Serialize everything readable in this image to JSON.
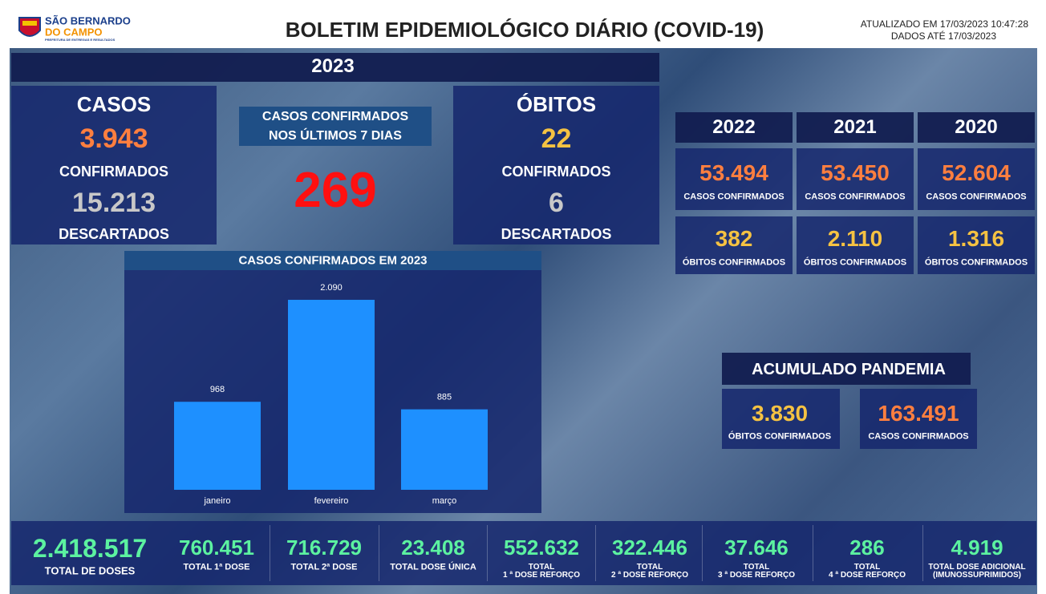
{
  "header": {
    "logo_name_1": "SÃO BERNARDO",
    "logo_name_2": "DO CAMPO",
    "logo_tagline": "PREFEITURA DE ENTREGAS E RESULTADOS",
    "title": "BOLETIM EPIDEMIOLÓGICO DIÁRIO (COVID-19)",
    "updated": "ATUALIZADO EM 17/03/2023 10:47:28",
    "data_until": "DADOS ATÉ 17/03/2023"
  },
  "year_banner": "2023",
  "cases": {
    "title": "CASOS",
    "confirmed": "3.943",
    "confirmed_label": "CONFIRMADOS",
    "discarded": "15.213",
    "discarded_label": "DESCARTADOS"
  },
  "last7": {
    "title_lines": [
      "CASOS CONFIRMADOS",
      "NOS ÚLTIMOS 7 DIAS"
    ],
    "value": "269"
  },
  "deaths": {
    "title": "ÓBITOS",
    "confirmed": "22",
    "confirmed_label": "CONFIRMADOS",
    "discarded": "6",
    "discarded_label": "DESCARTADOS"
  },
  "years": [
    {
      "year": "2022",
      "cases": "53.494",
      "cases_label": "CASOS CONFIRMADOS",
      "deaths": "382",
      "deaths_label": "ÓBITOS CONFIRMADOS"
    },
    {
      "year": "2021",
      "cases": "53.450",
      "cases_label": "CASOS CONFIRMADOS",
      "deaths": "2.110",
      "deaths_label": "ÓBITOS CONFIRMADOS"
    },
    {
      "year": "2020",
      "cases": "52.604",
      "cases_label": "CASOS CONFIRMADOS",
      "deaths": "1.316",
      "deaths_label": "ÓBITOS CONFIRMADOS"
    }
  ],
  "cumulative": {
    "title": "ACUMULADO PANDEMIA",
    "deaths": "3.830",
    "deaths_label": "ÓBITOS CONFIRMADOS",
    "cases": "163.491",
    "cases_label": "CASOS CONFIRMADOS"
  },
  "chart_data": {
    "type": "bar",
    "title": "CASOS CONFIRMADOS EM 2023",
    "categories": [
      "janeiro",
      "fevereiro",
      "março"
    ],
    "values": [
      968,
      2090,
      885
    ],
    "value_labels": [
      "968",
      "2.090",
      "885"
    ],
    "color": "#1e90ff"
  },
  "vaccines": {
    "total": "2.418.517",
    "total_label": "TOTAL DE DOSES",
    "items": [
      {
        "value": "760.451",
        "label_lines": [
          "TOTAL 1ª DOSE"
        ]
      },
      {
        "value": "716.729",
        "label_lines": [
          "TOTAL 2ª DOSE"
        ]
      },
      {
        "value": "23.408",
        "label_lines": [
          "TOTAL DOSE ÚNICA"
        ]
      },
      {
        "value": "552.632",
        "label_lines": [
          "TOTAL",
          "1 ª DOSE REFORÇO"
        ]
      },
      {
        "value": "322.446",
        "label_lines": [
          "TOTAL",
          "2 ª DOSE REFORÇO"
        ]
      },
      {
        "value": "37.646",
        "label_lines": [
          "TOTAL",
          "3 ª DOSE REFORÇO"
        ]
      },
      {
        "value": "286",
        "label_lines": [
          "TOTAL",
          "4 ª DOSE REFORÇO"
        ]
      },
      {
        "value": "4.919",
        "label_lines": [
          "TOTAL DOSE ADICIONAL",
          "(IMUNOSSUPRIMIDOS)"
        ]
      }
    ]
  }
}
